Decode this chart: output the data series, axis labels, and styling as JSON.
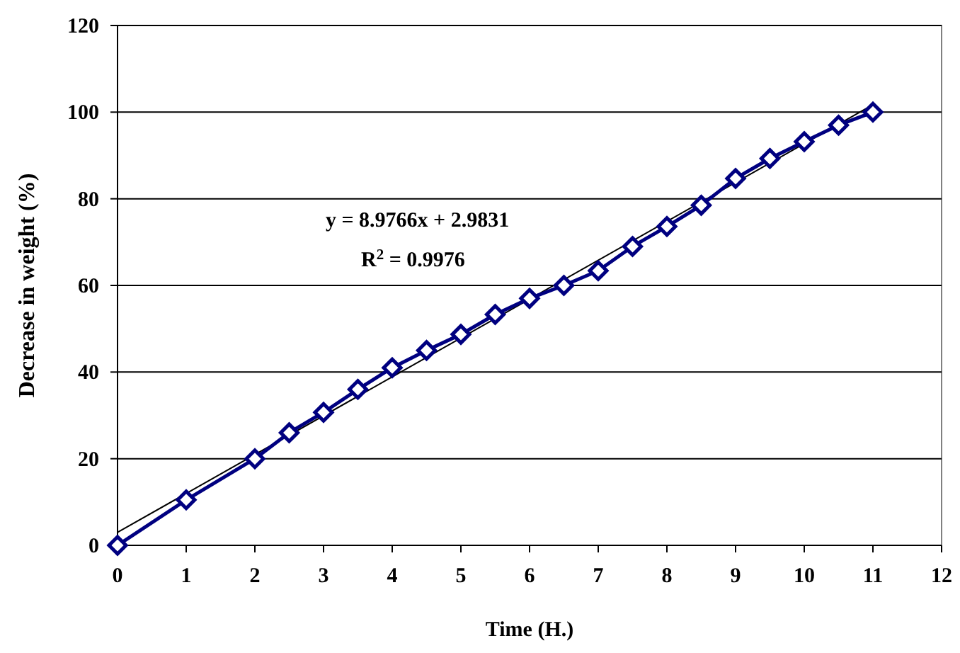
{
  "chart_data": {
    "type": "line",
    "xlabel": "Time (H.)",
    "ylabel": "Decrease in weight (%)",
    "xlim": [
      0,
      12
    ],
    "xticks": [
      0,
      1,
      2,
      3,
      4,
      5,
      6,
      7,
      8,
      9,
      10,
      11,
      12
    ],
    "ylim": [
      0,
      120
    ],
    "yticks": [
      0,
      20,
      40,
      60,
      80,
      100,
      120
    ],
    "grid": "y",
    "annotations": [
      "y = 8.9766x + 2.9831",
      "R$^{2}$ = 0.9976"
    ],
    "series": [
      {
        "type": "line",
        "color": "#000080",
        "marker": "diamond",
        "x": [
          0,
          1,
          2,
          2.5,
          3,
          3.5,
          4,
          4.5,
          5,
          5.5,
          6,
          6.5,
          7,
          7.5,
          8,
          8.5,
          9,
          9.5,
          10,
          10.5,
          11
        ],
        "values": [
          0,
          10.5,
          20,
          26,
          30.7,
          36,
          41,
          45,
          48.7,
          53.3,
          57,
          60,
          63.4,
          69,
          73.6,
          78.5,
          84.7,
          89.3,
          93.2,
          97,
          100
        ]
      },
      {
        "type": "line",
        "color": "#000000",
        "marker": "none",
        "x": [
          0,
          11
        ],
        "values": [
          3,
          101.7
        ]
      }
    ]
  }
}
